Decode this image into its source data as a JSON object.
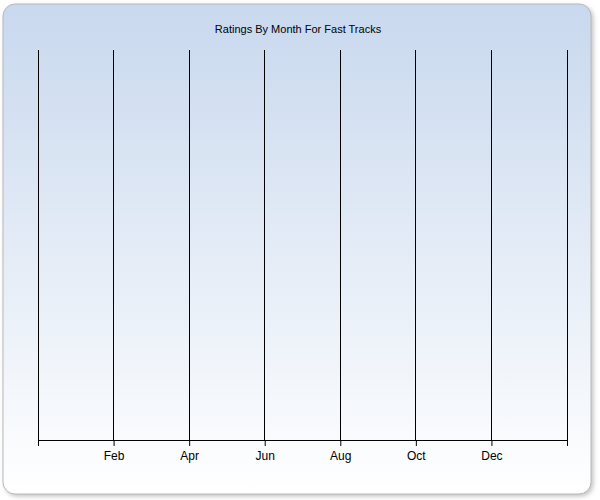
{
  "chart_data": {
    "type": "line",
    "title": "Ratings By Month For Fast Tracks",
    "categories": [
      null,
      "Feb",
      "Apr",
      "Jun",
      "Aug",
      "Oct",
      "Dec",
      null
    ],
    "values": [
      null,
      null,
      null,
      null,
      null,
      null,
      null,
      null
    ],
    "grid": true,
    "tick_labels": "x"
  }
}
